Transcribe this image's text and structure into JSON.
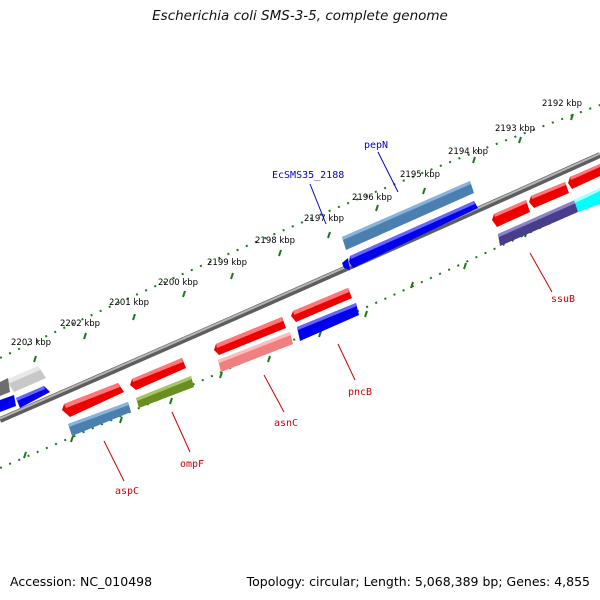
{
  "title": "Escherichia coli SMS-3-5, complete genome",
  "footer": {
    "accession": "Accession: NC_010498",
    "summary": "Topology: circular; Length: 5,068,389 bp; Genes: 4,855"
  },
  "ruler_labels": [
    "2192 kbp",
    "2193 kbp",
    "2194 kbp",
    "2195 kbp",
    "2196 kbp",
    "2197 kbp",
    "2198 kbp",
    "2199 kbp",
    "2200 kbp",
    "2201 kbp",
    "2202 kbp",
    "2203 kbp"
  ],
  "gene_labels": [
    {
      "id": "pepN",
      "text": "pepN",
      "color": "#0000cc"
    },
    {
      "id": "EcSMS35_2188",
      "text": "EcSMS35_2188",
      "color": "#0000cc"
    },
    {
      "id": "ssuB",
      "text": "ssuB",
      "color": "#cc0000"
    },
    {
      "id": "pncB",
      "text": "pncB",
      "color": "#cc0000"
    },
    {
      "id": "asnC",
      "text": "asnC",
      "color": "#cc0000"
    },
    {
      "id": "ompF",
      "text": "ompF",
      "color": "#cc0000"
    },
    {
      "id": "aspC",
      "text": "aspC",
      "color": "#cc0000"
    }
  ],
  "colors": {
    "backbone": "#808080",
    "ruler": "#1a7a1a",
    "red": "#ff0000",
    "blue": "#0000ff",
    "steelblue": "#4682b4",
    "olive": "#6b8e23",
    "salmon": "#f08080",
    "slateblue": "#483d8b",
    "cyan": "#00ffff",
    "grey": "#c0c0c0",
    "darkgrey": "#707070"
  }
}
